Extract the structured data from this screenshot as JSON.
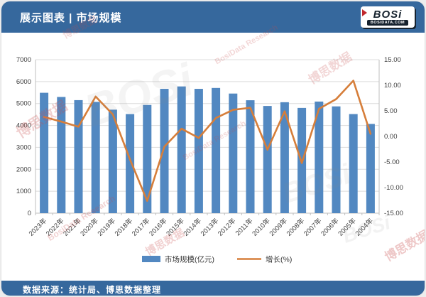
{
  "header": {
    "title": "展示图表 | 市场规模",
    "logo": {
      "text": "BOSi",
      "domain": "BOSIDATA.COM"
    }
  },
  "footer": {
    "source_text": "数据来源：统计局、博思数据整理"
  },
  "watermarks": {
    "cn": "博思数据",
    "en": "BosiData Research",
    "logo": "BOSi"
  },
  "chart_data": {
    "type": "bar",
    "subtype": "bar-line-combo",
    "title": "市场规模",
    "categories": [
      "2023年",
      "2022年",
      "2021年",
      "2020年",
      "2019年",
      "2018年",
      "2017年",
      "2016年",
      "2015年",
      "2014年",
      "2013年",
      "2012年",
      "2011年",
      "2010年",
      "2009年",
      "2008年",
      "2007年",
      "2006年",
      "2005年",
      "2004年"
    ],
    "series": [
      {
        "name": "市场规模(亿元)",
        "type": "bar",
        "axis": "left",
        "color": "#5288C1",
        "values": [
          5490,
          5300,
          5155,
          5075,
          4720,
          4520,
          4935,
          5670,
          5780,
          5670,
          5710,
          5455,
          5150,
          4890,
          5060,
          4800,
          5090,
          4870,
          4520,
          4070
        ]
      },
      {
        "name": "增长(%)",
        "type": "line",
        "axis": "right",
        "color": "#D67E3A",
        "values": [
          3.8,
          2.9,
          1.9,
          7.8,
          4.3,
          -4.5,
          -12.6,
          -2.0,
          1.5,
          -0.3,
          3.6,
          5.2,
          5.6,
          -2.6,
          4.9,
          -5.2,
          5.4,
          7.3,
          10.9,
          0.5
        ]
      }
    ],
    "left_axis": {
      "min": 0,
      "max": 7000,
      "step": 1000,
      "ticks": [
        "0",
        "1000",
        "2000",
        "3000",
        "4000",
        "5000",
        "6000",
        "7000"
      ]
    },
    "right_axis": {
      "min": -15,
      "max": 15,
      "step": 5,
      "decimals": 2,
      "ticks": [
        "-15.00",
        "-10.00",
        "-5.00",
        "0.00",
        "5.00",
        "10.00",
        "15.00"
      ]
    },
    "grid": true,
    "legend_position": "bottom",
    "colors": {
      "grid": "#DCDCDC",
      "axis": "#BFBFBF",
      "text": "#404040"
    }
  }
}
